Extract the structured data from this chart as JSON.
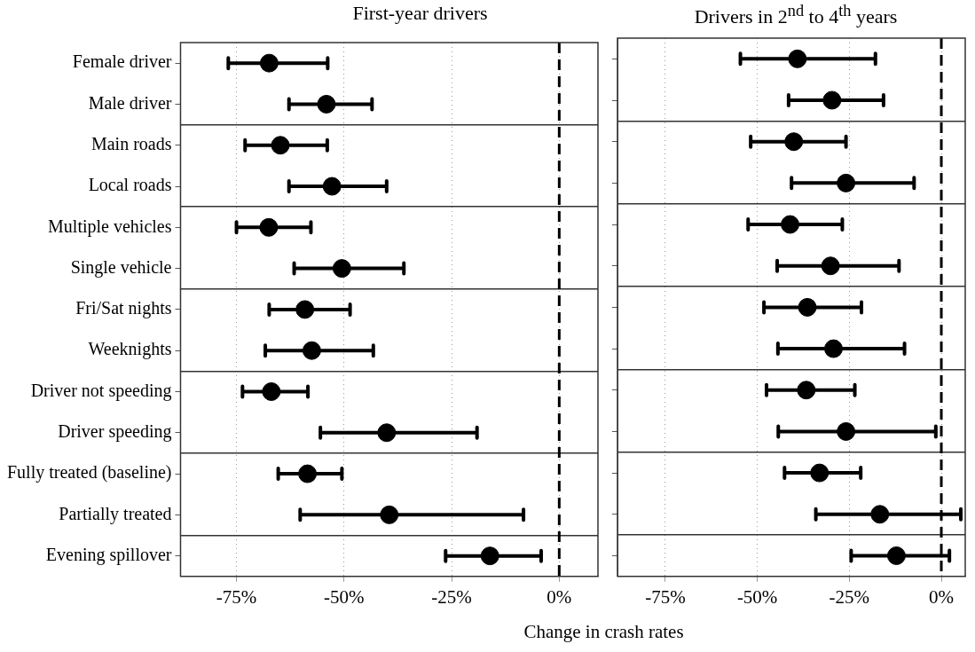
{
  "chart_data": [
    {
      "type": "scatter",
      "orientation": "horizontal",
      "title": "First-year drivers",
      "xlabel": "Change in crash rates",
      "categories": [
        "Female driver",
        "Male driver",
        "Main roads",
        "Local roads",
        "Multiple vehicles",
        "Single vehicle",
        "Fri/Sat nights",
        "Weeknights",
        "Driver not speeding",
        "Driver speeding",
        "Fully treated (baseline)",
        "Partially treated",
        "Evening spillover"
      ],
      "values": [
        -67.4,
        -54.1,
        -64.8,
        -52.8,
        -67.5,
        -50.5,
        -59.1,
        -57.5,
        -66.9,
        -40.1,
        -58.5,
        -39.5,
        -16.1
      ],
      "errors": [
        [
          -76.9,
          -53.8
        ],
        [
          -62.8,
          -43.5
        ],
        [
          -73.0,
          -53.9
        ],
        [
          -62.8,
          -40.1
        ],
        [
          -75.0,
          -57.7
        ],
        [
          -61.6,
          -36.1
        ],
        [
          -67.4,
          -48.6
        ],
        [
          -68.3,
          -43.2
        ],
        [
          -73.6,
          -58.4
        ],
        [
          -55.5,
          -19.1
        ],
        [
          -65.3,
          -50.5
        ],
        [
          -60.2,
          -8.3
        ],
        [
          -26.4,
          -4.2
        ]
      ],
      "color": "#000000",
      "marker": "circle",
      "xlim": [
        -88,
        9
      ],
      "xticks": [
        {
          "value": -75,
          "label": "-75%"
        },
        {
          "value": -50,
          "label": "-50%"
        },
        {
          "value": -25,
          "label": "-25%"
        },
        {
          "value": 0,
          "label": "0%"
        }
      ],
      "grid": "x",
      "legend": false,
      "ref_lines": [
        {
          "axis": "x",
          "value": 0,
          "color": "#000000",
          "line_style": "dashed"
        }
      ]
    },
    {
      "type": "scatter",
      "orientation": "horizontal",
      "title": "Drivers in 2$^{nd}$ to 4$^{th}$ years",
      "categories": [
        null,
        null,
        null,
        null,
        null,
        null,
        null,
        null,
        null,
        null,
        null,
        null,
        null
      ],
      "values": [
        -39.1,
        -29.7,
        -40.1,
        -25.9,
        -41.1,
        -30.1,
        -36.4,
        -29.3,
        -36.7,
        -25.9,
        -33.1,
        -16.7,
        -12.2
      ],
      "errors": [
        [
          -54.6,
          -17.9
        ],
        [
          -41.5,
          -15.7
        ],
        [
          -51.8,
          -25.9
        ],
        [
          -40.7,
          -7.4
        ],
        [
          -52.5,
          -26.9
        ],
        [
          -44.6,
          -11.5
        ],
        [
          -48.2,
          -21.7
        ],
        [
          -44.4,
          -10.0
        ],
        [
          -47.5,
          -23.5
        ],
        [
          -44.3,
          -1.5
        ],
        [
          -42.6,
          -21.9
        ],
        [
          -34.1,
          5.3
        ],
        [
          -24.5,
          2.2
        ]
      ],
      "color": "#000000",
      "marker": "circle",
      "xlim": [
        -88,
        6.5
      ],
      "xticks": [
        {
          "value": -75,
          "label": "-75%"
        },
        {
          "value": -50,
          "label": "-50%"
        },
        {
          "value": -25,
          "label": "-25%"
        },
        {
          "value": 0,
          "label": "0%"
        }
      ],
      "grid": "x",
      "legend": false,
      "tick_labels": "x",
      "ref_lines": [
        {
          "axis": "x",
          "value": 0,
          "color": "#000000",
          "line_style": "dashed"
        }
      ]
    }
  ]
}
